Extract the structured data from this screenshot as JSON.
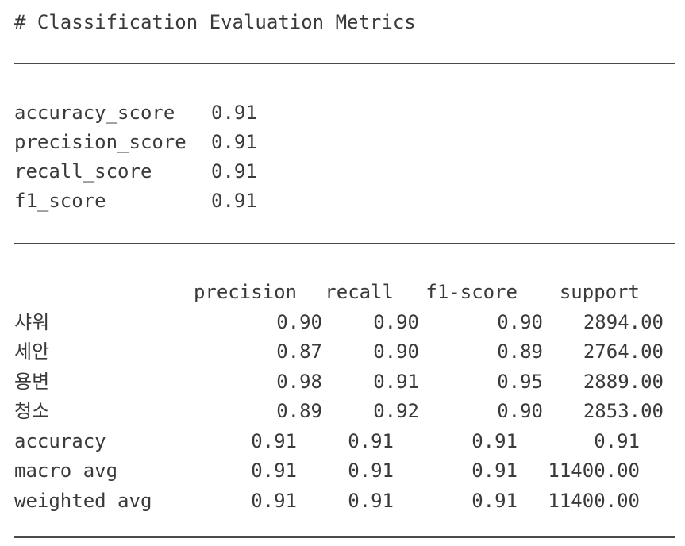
{
  "header": {
    "title": "# Classification Evaluation Metrics"
  },
  "summary": [
    {
      "label": "accuracy_score",
      "value": "0.91"
    },
    {
      "label": "precision_score",
      "value": "0.91"
    },
    {
      "label": "recall_score",
      "value": "0.91"
    },
    {
      "label": "f1_score",
      "value": "0.91"
    }
  ],
  "report": {
    "columns": [
      "precision",
      "recall",
      "f1-score",
      "support"
    ],
    "class_rows": [
      {
        "label": "샤워",
        "precision": "0.90",
        "recall": "0.90",
        "f1": "0.90",
        "support": "2894.00"
      },
      {
        "label": "세안",
        "precision": "0.87",
        "recall": "0.90",
        "f1": "0.89",
        "support": "2764.00"
      },
      {
        "label": "용변",
        "precision": "0.98",
        "recall": "0.91",
        "f1": "0.95",
        "support": "2889.00"
      },
      {
        "label": "청소",
        "precision": "0.89",
        "recall": "0.92",
        "f1": "0.90",
        "support": "2853.00"
      }
    ],
    "avg_rows": [
      {
        "label": "accuracy",
        "precision": "0.91",
        "recall": "0.91",
        "f1": "0.91",
        "support": "0.91"
      },
      {
        "label": "macro avg",
        "precision": "0.91",
        "recall": "0.91",
        "f1": "0.91",
        "support": "11400.00"
      },
      {
        "label": "weighted avg",
        "precision": "0.91",
        "recall": "0.91",
        "f1": "0.91",
        "support": "11400.00"
      }
    ]
  }
}
